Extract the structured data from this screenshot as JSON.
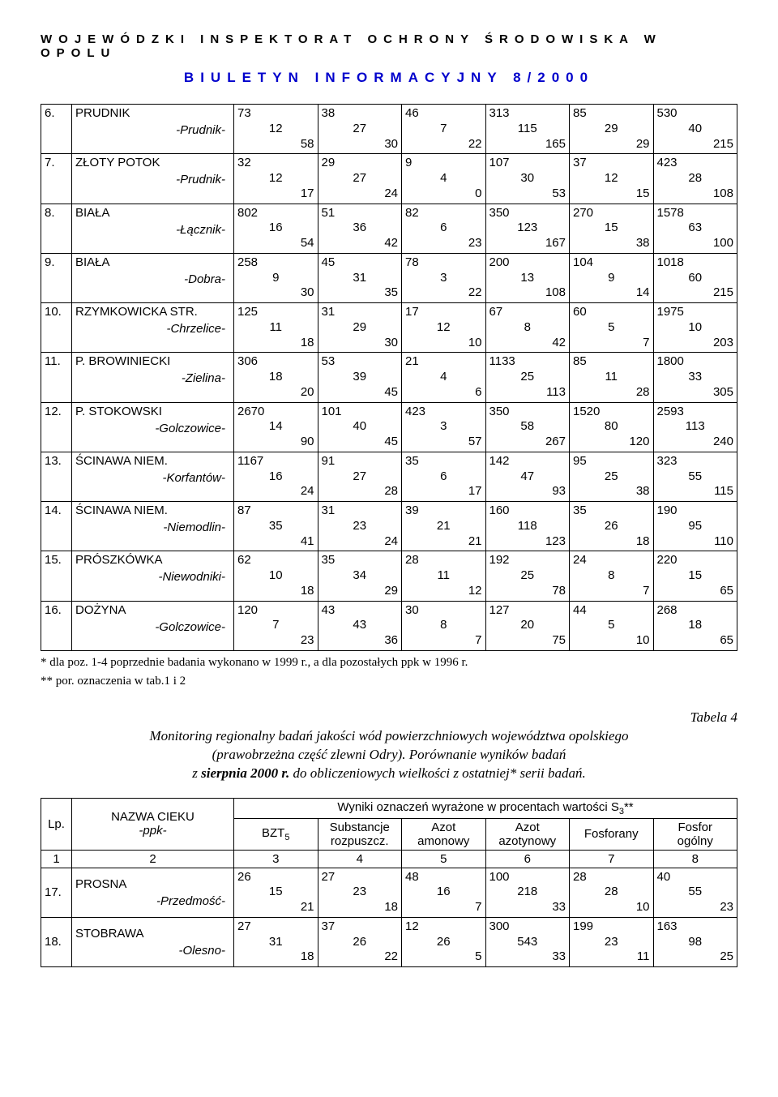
{
  "header": {
    "line1": "WOJEWÓDZKI INSPEKTORAT OCHRONY ŚRODOWISKA W OPOLU",
    "line2": "BIULETYN INFORMACYJNY 8/2000"
  },
  "rows1": [
    {
      "n": "6.",
      "name": "PRUDNIK",
      "sub": "-Prudnik-",
      "c": [
        [
          "73",
          "12",
          "58"
        ],
        [
          "38",
          "27",
          "30"
        ],
        [
          "46",
          "7",
          "22"
        ],
        [
          "313",
          "115",
          "165"
        ],
        [
          "85",
          "29",
          "29"
        ],
        [
          "530",
          "40",
          "215"
        ]
      ]
    },
    {
      "n": "7.",
      "name": "ZŁOTY POTOK",
      "sub": "-Prudnik-",
      "c": [
        [
          "32",
          "12",
          "17"
        ],
        [
          "29",
          "27",
          "24"
        ],
        [
          "9",
          "4",
          "0"
        ],
        [
          "107",
          "30",
          "53"
        ],
        [
          "37",
          "12",
          "15"
        ],
        [
          "423",
          "28",
          "108"
        ]
      ]
    },
    {
      "n": "8.",
      "name": "BIAŁA",
      "sub": "-Łącznik-",
      "c": [
        [
          "802",
          "16",
          "54"
        ],
        [
          "51",
          "36",
          "42"
        ],
        [
          "82",
          "6",
          "23"
        ],
        [
          "350",
          "123",
          "167"
        ],
        [
          "270",
          "15",
          "38"
        ],
        [
          "1578",
          "63",
          "100"
        ]
      ]
    },
    {
      "n": "9.",
      "name": "BIAŁA",
      "sub": "-Dobra-",
      "c": [
        [
          "258",
          "9",
          "30"
        ],
        [
          "45",
          "31",
          "35"
        ],
        [
          "78",
          "3",
          "22"
        ],
        [
          "200",
          "13",
          "108"
        ],
        [
          "104",
          "9",
          "14"
        ],
        [
          "1018",
          "60",
          "215"
        ]
      ]
    },
    {
      "n": "10.",
      "name": "RZYMKOWICKA STR.",
      "sub": "-Chrzelice-",
      "c": [
        [
          "125",
          "11",
          "18"
        ],
        [
          "31",
          "29",
          "30"
        ],
        [
          "17",
          "12",
          "10"
        ],
        [
          "67",
          "8",
          "42"
        ],
        [
          "60",
          "5",
          "7"
        ],
        [
          "1975",
          "10",
          "203"
        ]
      ]
    },
    {
      "n": "11.",
      "name": "P. BROWINIECKI",
      "sub": "-Zielina-",
      "c": [
        [
          "306",
          "18",
          "20"
        ],
        [
          "53",
          "39",
          "45"
        ],
        [
          "21",
          "4",
          "6"
        ],
        [
          "1133",
          "25",
          "113"
        ],
        [
          "85",
          "11",
          "28"
        ],
        [
          "1800",
          "33",
          "305"
        ]
      ]
    },
    {
      "n": "12.",
      "name": "P. STOKOWSKI",
      "sub": "-Golczowice-",
      "c": [
        [
          "2670",
          "14",
          "90"
        ],
        [
          "101",
          "40",
          "45"
        ],
        [
          "423",
          "3",
          "57"
        ],
        [
          "350",
          "58",
          "267"
        ],
        [
          "1520",
          "80",
          "120"
        ],
        [
          "2593",
          "113",
          "240"
        ]
      ]
    },
    {
      "n": "13.",
      "name": "ŚCINAWA NIEM.",
      "sub": "-Korfantów-",
      "c": [
        [
          "1167",
          "16",
          "24"
        ],
        [
          "91",
          "27",
          "28"
        ],
        [
          "35",
          "6",
          "17"
        ],
        [
          "142",
          "47",
          "93"
        ],
        [
          "95",
          "25",
          "38"
        ],
        [
          "323",
          "55",
          "115"
        ]
      ]
    },
    {
      "n": "14.",
      "name": "ŚCINAWA NIEM.",
      "sub": "-Niemodlin-",
      "c": [
        [
          "87",
          "35",
          "41"
        ],
        [
          "31",
          "23",
          "24"
        ],
        [
          "39",
          "21",
          "21"
        ],
        [
          "160",
          "118",
          "123"
        ],
        [
          "35",
          "26",
          "18"
        ],
        [
          "190",
          "95",
          "110"
        ]
      ]
    },
    {
      "n": "15.",
      "name": "PRÓSZKÓWKA",
      "sub": "-Niewodniki-",
      "c": [
        [
          "62",
          "10",
          "18"
        ],
        [
          "35",
          "34",
          "29"
        ],
        [
          "28",
          "11",
          "12"
        ],
        [
          "192",
          "25",
          "78"
        ],
        [
          "24",
          "8",
          "7"
        ],
        [
          "220",
          "15",
          "65"
        ]
      ]
    },
    {
      "n": "16.",
      "name": "DOŻYNA",
      "sub": "-Golczowice-",
      "c": [
        [
          "120",
          "7",
          "23"
        ],
        [
          "43",
          "43",
          "36"
        ],
        [
          "30",
          "8",
          "7"
        ],
        [
          "127",
          "20",
          "75"
        ],
        [
          "44",
          "5",
          "10"
        ],
        [
          "268",
          "18",
          "65"
        ]
      ]
    }
  ],
  "footnotes": {
    "f1": "* dla poz. 1-4 poprzednie badania wykonano w 1999 r., a dla pozostałych ppk w 1996 r.",
    "f2": "** por. oznaczenia w tab.1 i 2"
  },
  "tabela4": {
    "label": "Tabela 4",
    "caption_l1": "Monitoring regionalny badań jakości wód powierzchniowych województwa opolskiego",
    "caption_l2": "(prawobrzeżna część zlewni Odry). Porównanie wyników badań",
    "caption_l3a": "z ",
    "caption_l3b": "sierpnia 2000 r.",
    "caption_l3c": " do obliczeniowych wielkości z ostatniej* serii badań."
  },
  "tbl2_header": {
    "lp": "Lp.",
    "nazwa1": "NAZWA CIEKU",
    "nazwa2": "-ppk-",
    "wyniki": "Wyniki oznaczeń wyrażone w procentach wartości S",
    "wyniki_sub": "3",
    "wyniki_sfx": "**",
    "bzt": "BZT",
    "bzt_sub": "5",
    "subst1": "Substancje",
    "subst2": "rozpuszcz.",
    "azot_am1": "Azot",
    "azot_am2": "amonowy",
    "azot_az1": "Azot",
    "azot_az2": "azotynowy",
    "fosforany": "Fosforany",
    "fosfor1": "Fosfor",
    "fosfor2": "ogólny",
    "nums": [
      "1",
      "2",
      "3",
      "4",
      "5",
      "6",
      "7",
      "8"
    ]
  },
  "rows2": [
    {
      "n": "17.",
      "name": "PROSNA",
      "sub": "-Przedmość-",
      "c": [
        [
          "26",
          "15",
          "21"
        ],
        [
          "27",
          "23",
          "18"
        ],
        [
          "48",
          "16",
          "7"
        ],
        [
          "100",
          "218",
          "33"
        ],
        [
          "28",
          "28",
          "10"
        ],
        [
          "40",
          "55",
          "23"
        ]
      ]
    },
    {
      "n": "18.",
      "name": "STOBRAWA",
      "sub": "-Olesno-",
      "c": [
        [
          "27",
          "31",
          "18"
        ],
        [
          "37",
          "26",
          "22"
        ],
        [
          "12",
          "26",
          "5"
        ],
        [
          "300",
          "543",
          "33"
        ],
        [
          "199",
          "23",
          "11"
        ],
        [
          "163",
          "98",
          "25"
        ]
      ]
    }
  ],
  "colors": {
    "text": "#000000",
    "link": "#0000cc",
    "bg": "#ffffff",
    "border": "#000000"
  }
}
